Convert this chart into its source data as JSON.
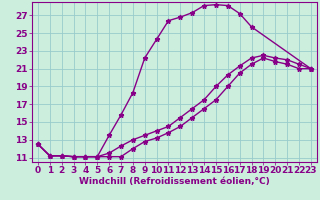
{
  "xlabel": "Windchill (Refroidissement éolien,°C)",
  "bg_color": "#cceedd",
  "line_color": "#880088",
  "grid_color": "#99cccc",
  "xlim": [
    -0.5,
    23.5
  ],
  "ylim": [
    10.5,
    28.5
  ],
  "xticks": [
    0,
    1,
    2,
    3,
    4,
    5,
    6,
    7,
    8,
    9,
    10,
    11,
    12,
    13,
    14,
    15,
    16,
    17,
    18,
    19,
    20,
    21,
    22,
    23
  ],
  "yticks": [
    11,
    13,
    15,
    17,
    19,
    21,
    23,
    25,
    27
  ],
  "line1_x": [
    0,
    1,
    2,
    3,
    4,
    5,
    6,
    7,
    8,
    9,
    10,
    11,
    12,
    13,
    14,
    15,
    16,
    17,
    18,
    23
  ],
  "line1_y": [
    12.5,
    11.2,
    11.2,
    11.1,
    11.1,
    11.1,
    13.5,
    15.8,
    18.3,
    22.2,
    24.3,
    26.4,
    26.8,
    27.3,
    28.1,
    28.2,
    28.1,
    27.2,
    25.7,
    21.0
  ],
  "line2_x": [
    0,
    1,
    2,
    3,
    4,
    5,
    6,
    7,
    8,
    9,
    10,
    11,
    12,
    13,
    14,
    15,
    16,
    17,
    18,
    19,
    20,
    21,
    22,
    23
  ],
  "line2_y": [
    12.5,
    11.2,
    11.2,
    11.1,
    11.1,
    11.1,
    11.1,
    11.1,
    12.0,
    12.8,
    13.2,
    13.8,
    14.5,
    15.5,
    16.5,
    17.5,
    19.0,
    20.5,
    21.5,
    22.2,
    21.8,
    21.5,
    21.0,
    21.0
  ],
  "line3_x": [
    0,
    1,
    2,
    3,
    4,
    5,
    6,
    7,
    8,
    9,
    10,
    11,
    12,
    13,
    14,
    15,
    16,
    17,
    18,
    19,
    20,
    21,
    22,
    23
  ],
  "line3_y": [
    12.5,
    11.2,
    11.2,
    11.1,
    11.1,
    11.1,
    11.5,
    12.3,
    13.0,
    13.5,
    14.0,
    14.5,
    15.5,
    16.5,
    17.5,
    19.0,
    20.3,
    21.3,
    22.2,
    22.5,
    22.2,
    22.0,
    21.5,
    21.0
  ],
  "marker": "*",
  "markersize": 3.5,
  "linewidth": 1.0,
  "tick_fontsize": 6.5,
  "xlabel_fontsize": 6.5
}
